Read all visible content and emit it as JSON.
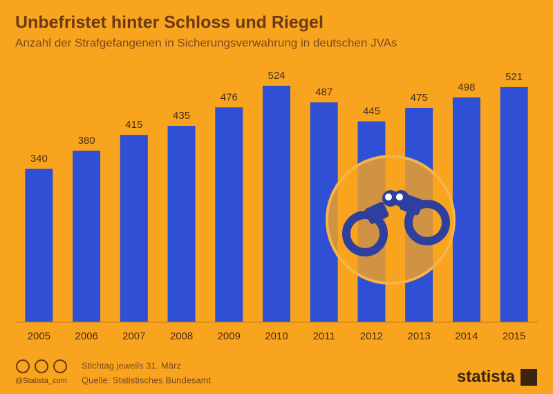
{
  "chart_data": {
    "type": "bar",
    "title": "Unbefristet hinter Schloss und Riegel",
    "subtitle": "Anzahl der Strafgefangenen in Sicherungsverwahrung in deutschen JVAs",
    "categories": [
      "2005",
      "2006",
      "2007",
      "2008",
      "2009",
      "2010",
      "2011",
      "2012",
      "2013",
      "2014",
      "2015"
    ],
    "values": [
      340,
      380,
      415,
      435,
      476,
      524,
      487,
      445,
      475,
      498,
      521
    ],
    "color": "#2f4fd4",
    "note": "Stichtag jeweils 31. März",
    "source": "Quelle: Statistisches Bundesamt",
    "credit": "@Statista_com",
    "brand": "statista"
  }
}
